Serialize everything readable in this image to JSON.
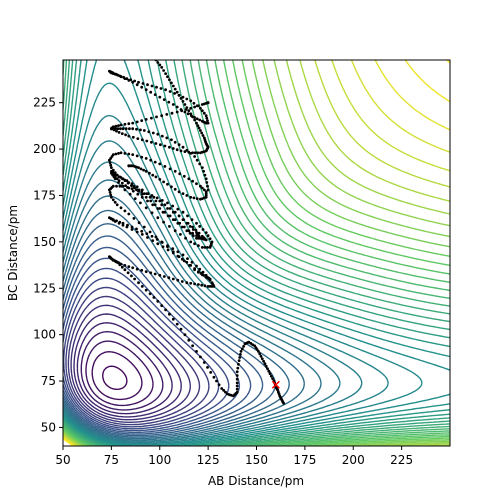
{
  "chart_data": {
    "type": "contour",
    "title": "",
    "xlabel": "AB Distance/pm",
    "ylabel": "BC Distance/pm",
    "xlim": [
      50,
      250
    ],
    "ylim": [
      40,
      248
    ],
    "xticks": [
      50,
      75,
      100,
      125,
      150,
      175,
      200,
      225
    ],
    "yticks": [
      50,
      75,
      100,
      125,
      150,
      175,
      200,
      225
    ],
    "grid": false,
    "legend": "none",
    "colormap": [
      "#440154",
      "#3b528b",
      "#21918c",
      "#5ec962",
      "#fde725"
    ],
    "contour_levels": 48,
    "potential_surface": {
      "description_free": true,
      "well_depth": 1.0,
      "alpha": 0.018,
      "r0": 74,
      "barrier_diag": 0.1
    },
    "trajectory": {
      "color": "#000000",
      "points": [
        [
          164,
          63
        ],
        [
          163,
          65
        ],
        [
          162,
          67
        ],
        [
          161,
          70
        ],
        [
          160,
          72
        ],
        [
          159,
          75
        ],
        [
          157,
          79
        ],
        [
          155,
          83
        ],
        [
          153,
          87
        ],
        [
          151,
          91
        ],
        [
          149,
          94
        ],
        [
          146,
          96
        ],
        [
          144,
          95
        ],
        [
          142,
          91
        ],
        [
          141,
          86
        ],
        [
          140,
          80
        ],
        [
          140,
          74
        ],
        [
          140,
          69
        ],
        [
          138,
          67
        ],
        [
          135,
          68
        ],
        [
          132,
          71
        ],
        [
          128,
          77
        ],
        [
          123,
          85
        ],
        [
          117,
          94
        ],
        [
          111,
          103
        ],
        [
          105,
          111
        ],
        [
          99,
          118
        ],
        [
          93,
          124
        ],
        [
          87,
          130
        ],
        [
          82,
          135
        ],
        [
          78,
          139
        ],
        [
          75,
          141
        ],
        [
          74,
          142
        ],
        [
          76,
          140
        ],
        [
          80,
          138
        ],
        [
          86,
          136
        ],
        [
          93,
          134
        ],
        [
          100,
          132
        ],
        [
          107,
          130
        ],
        [
          114,
          128
        ],
        [
          120,
          127
        ],
        [
          125,
          126
        ],
        [
          128,
          126
        ],
        [
          127,
          128
        ],
        [
          124,
          132
        ],
        [
          119,
          137
        ],
        [
          112,
          143
        ],
        [
          104,
          148
        ],
        [
          96,
          153
        ],
        [
          88,
          157
        ],
        [
          81,
          160
        ],
        [
          76,
          162
        ],
        [
          74,
          163
        ],
        [
          77,
          161
        ],
        [
          83,
          158
        ],
        [
          91,
          154
        ],
        [
          99,
          149
        ],
        [
          107,
          144
        ],
        [
          114,
          139
        ],
        [
          120,
          134
        ],
        [
          124,
          131
        ],
        [
          126,
          130
        ],
        [
          124,
          131
        ],
        [
          118,
          135
        ],
        [
          110,
          142
        ],
        [
          101,
          150
        ],
        [
          92,
          158
        ],
        [
          84,
          165
        ],
        [
          78,
          170
        ],
        [
          75,
          174
        ],
        [
          74,
          178
        ],
        [
          76,
          180
        ],
        [
          81,
          180
        ],
        [
          88,
          178
        ],
        [
          96,
          175
        ],
        [
          104,
          171
        ],
        [
          112,
          166
        ],
        [
          119,
          160
        ],
        [
          124,
          155
        ],
        [
          127,
          150
        ],
        [
          126,
          147
        ],
        [
          122,
          147
        ],
        [
          116,
          150
        ],
        [
          108,
          156
        ],
        [
          99,
          163
        ],
        [
          90,
          171
        ],
        [
          82,
          178
        ],
        [
          77,
          184
        ],
        [
          75,
          187
        ],
        [
          77,
          186
        ],
        [
          83,
          183
        ],
        [
          91,
          178
        ],
        [
          100,
          172
        ],
        [
          108,
          166
        ],
        [
          114,
          160
        ],
        [
          119,
          155
        ],
        [
          121,
          152
        ],
        [
          119,
          152
        ],
        [
          114,
          156
        ],
        [
          107,
          162
        ],
        [
          99,
          168
        ],
        [
          91,
          174
        ],
        [
          84,
          179
        ],
        [
          79,
          183
        ],
        [
          76,
          186
        ],
        [
          75,
          188
        ],
        [
          78,
          186
        ],
        [
          84,
          182
        ],
        [
          92,
          176
        ],
        [
          101,
          170
        ],
        [
          110,
          164
        ],
        [
          117,
          158
        ],
        [
          122,
          153
        ],
        [
          124,
          151
        ],
        [
          121,
          152
        ],
        [
          115,
          156
        ],
        [
          108,
          162
        ],
        [
          100,
          168
        ],
        [
          93,
          174
        ],
        [
          87,
          179
        ],
        [
          82,
          183
        ],
        [
          78,
          186
        ],
        [
          75,
          190
        ],
        [
          74,
          194
        ],
        [
          76,
          197
        ],
        [
          80,
          198
        ],
        [
          86,
          197
        ],
        [
          93,
          195
        ],
        [
          100,
          192
        ],
        [
          108,
          188
        ],
        [
          115,
          184
        ],
        [
          121,
          180
        ],
        [
          124,
          177
        ],
        [
          124,
          174
        ],
        [
          121,
          173
        ],
        [
          116,
          174
        ],
        [
          110,
          177
        ],
        [
          104,
          181
        ],
        [
          98,
          185
        ],
        [
          93,
          188
        ],
        [
          89,
          190
        ],
        [
          86,
          191
        ],
        [
          84,
          191
        ]
      ],
      "segment2": [
        [
          125,
          178
        ],
        [
          124,
          184
        ],
        [
          122,
          190
        ],
        [
          118,
          196
        ],
        [
          112,
          201
        ],
        [
          106,
          205
        ],
        [
          99,
          208
        ],
        [
          92,
          210
        ],
        [
          86,
          211
        ],
        [
          81,
          211
        ],
        [
          77,
          211
        ],
        [
          75,
          211
        ],
        [
          76,
          212
        ],
        [
          80,
          213
        ],
        [
          86,
          214
        ],
        [
          93,
          216
        ],
        [
          101,
          218
        ],
        [
          109,
          220
        ],
        [
          116,
          222
        ],
        [
          122,
          224
        ],
        [
          125,
          225
        ]
      ],
      "segment3": [
        [
          125,
          214
        ],
        [
          124,
          218
        ],
        [
          121,
          222
        ],
        [
          116,
          226
        ],
        [
          110,
          229
        ],
        [
          103,
          232
        ],
        [
          96,
          234
        ],
        [
          89,
          236
        ],
        [
          83,
          238
        ],
        [
          78,
          240
        ],
        [
          75,
          241
        ],
        [
          74,
          242
        ],
        [
          76,
          241
        ],
        [
          80,
          239
        ],
        [
          86,
          236
        ],
        [
          93,
          232
        ],
        [
          100,
          228
        ],
        [
          107,
          224
        ],
        [
          113,
          220
        ],
        [
          118,
          217
        ],
        [
          122,
          215
        ],
        [
          124,
          214
        ]
      ],
      "segment4": [
        [
          98,
          248
        ],
        [
          101,
          244
        ],
        [
          104,
          239
        ],
        [
          107,
          234
        ],
        [
          110,
          229
        ],
        [
          113,
          224
        ],
        [
          116,
          219
        ],
        [
          119,
          214
        ],
        [
          121,
          210
        ],
        [
          123,
          206
        ],
        [
          124,
          203
        ],
        [
          125,
          201
        ],
        [
          124,
          199
        ],
        [
          121,
          198
        ],
        [
          117,
          198
        ],
        [
          111,
          199
        ],
        [
          105,
          201
        ],
        [
          98,
          203
        ],
        [
          91,
          205
        ],
        [
          84,
          207
        ],
        [
          79,
          209
        ],
        [
          75,
          211
        ]
      ]
    },
    "marker": {
      "x": 160,
      "y": 73,
      "symbol": "x",
      "color": "#ff0000"
    }
  }
}
